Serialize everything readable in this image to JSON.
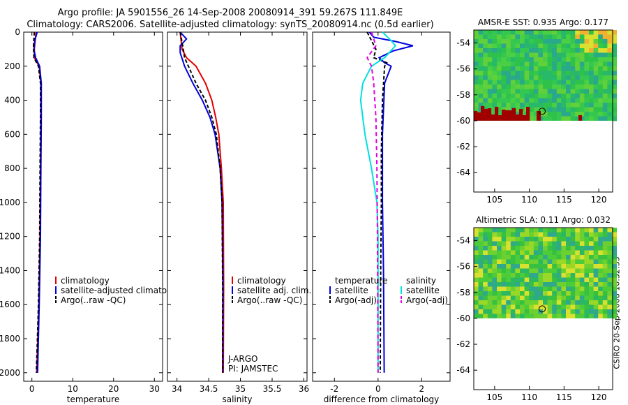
{
  "header": {
    "line1": "Argo profile: JA 5901556_26 14-Sep-2008 20080914_391 59.267S 111.849E",
    "line2": "Climatology: CARS2006. Satellite-adjusted climatology: synTS_20080914.nc (0.5d earlier)"
  },
  "timestamp": "CSIRO 20-Sep-2008 10:32:33",
  "colors": {
    "red": "#e00000",
    "blue": "#0000dd",
    "black": "#000000",
    "cyan": "#00e0e0",
    "magenta": "#e000e0",
    "land": "#a00000",
    "green": "#2ec24a",
    "yellow": "#d8e030",
    "teal": "#30b0a0"
  },
  "chart_data": [
    {
      "type": "line",
      "name": "temperature-panel",
      "xlabel": "temperature",
      "xlim": [
        -2,
        32
      ],
      "ylim": [
        2050,
        0
      ],
      "xticks": [
        0,
        10,
        20,
        30
      ],
      "yticks": [
        0,
        200,
        400,
        600,
        800,
        1000,
        1200,
        1400,
        1600,
        1800,
        2000
      ],
      "legend": [
        "climatology",
        "satellite-adjusted climatology",
        "Argo(..raw -QC)"
      ],
      "series": [
        {
          "name": "climatology",
          "color": "red",
          "dash": "",
          "points": [
            [
              1.0,
              0
            ],
            [
              0.8,
              50
            ],
            [
              0.6,
              100
            ],
            [
              0.6,
              150
            ],
            [
              1.8,
              200
            ],
            [
              2.2,
              300
            ],
            [
              2.2,
              500
            ],
            [
              2.1,
              800
            ],
            [
              2.0,
              1200
            ],
            [
              1.7,
              1600
            ],
            [
              1.2,
              2000
            ]
          ]
        },
        {
          "name": "satellite-adjusted climatology",
          "color": "blue",
          "dash": "",
          "points": [
            [
              1.3,
              0
            ],
            [
              0.7,
              50
            ],
            [
              0.5,
              100
            ],
            [
              0.9,
              150
            ],
            [
              1.9,
              200
            ],
            [
              2.3,
              300
            ],
            [
              2.3,
              500
            ],
            [
              2.2,
              800
            ],
            [
              2.1,
              1200
            ],
            [
              1.8,
              1600
            ],
            [
              1.4,
              2000
            ]
          ]
        },
        {
          "name": "Argo(..raw -QC)",
          "color": "black",
          "dash": "5,3",
          "points": [
            [
              0.6,
              0
            ],
            [
              0.4,
              80
            ],
            [
              0.5,
              150
            ],
            [
              1.6,
              200
            ],
            [
              2.1,
              300
            ],
            [
              2.1,
              500
            ],
            [
              2.0,
              800
            ],
            [
              1.9,
              1200
            ],
            [
              1.6,
              1600
            ],
            [
              1.1,
              2000
            ]
          ]
        }
      ]
    },
    {
      "type": "line",
      "name": "salinity-panel",
      "xlabel": "salinity",
      "xlim": [
        33.85,
        36.05
      ],
      "ylim": [
        2050,
        0
      ],
      "xticks": [
        34,
        34.5,
        35,
        35.5,
        36
      ],
      "yticks": [
        0,
        200,
        400,
        600,
        800,
        1000,
        1200,
        1400,
        1600,
        1800,
        2000
      ],
      "legend": [
        "climatology",
        "satellite adj. clim.",
        "Argo(..raw -QC)"
      ],
      "annotations": [
        "J-ARGO",
        "PI: JAMSTEC"
      ],
      "series": [
        {
          "name": "climatology",
          "color": "red",
          "dash": "",
          "points": [
            [
              34.05,
              0
            ],
            [
              34.08,
              100
            ],
            [
              34.15,
              150
            ],
            [
              34.3,
              200
            ],
            [
              34.45,
              300
            ],
            [
              34.55,
              400
            ],
            [
              34.61,
              500
            ],
            [
              34.66,
              600
            ],
            [
              34.7,
              800
            ],
            [
              34.73,
              1000
            ],
            [
              34.735,
              1500
            ],
            [
              34.73,
              2000
            ]
          ]
        },
        {
          "name": "satellite adj. clim.",
          "color": "blue",
          "dash": "",
          "points": [
            [
              34.05,
              0
            ],
            [
              34.15,
              40
            ],
            [
              34.05,
              80
            ],
            [
              34.05,
              120
            ],
            [
              34.12,
              200
            ],
            [
              34.25,
              300
            ],
            [
              34.4,
              400
            ],
            [
              34.52,
              500
            ],
            [
              34.6,
              600
            ],
            [
              34.68,
              800
            ],
            [
              34.71,
              1000
            ],
            [
              34.725,
              1500
            ],
            [
              34.72,
              2000
            ]
          ]
        },
        {
          "name": "Argo(..raw -QC)",
          "color": "black",
          "dash": "5,3",
          "points": [
            [
              34.05,
              0
            ],
            [
              34.1,
              100
            ],
            [
              34.12,
              150
            ],
            [
              34.18,
              200
            ],
            [
              34.3,
              300
            ],
            [
              34.45,
              400
            ],
            [
              34.55,
              500
            ],
            [
              34.62,
              600
            ],
            [
              34.68,
              800
            ],
            [
              34.71,
              1000
            ],
            [
              34.72,
              1500
            ],
            [
              34.72,
              2000
            ]
          ]
        }
      ]
    },
    {
      "type": "line",
      "name": "difference-panel",
      "xlabel": "difference from climatology",
      "xlim": [
        -3,
        3.3
      ],
      "ylim": [
        2050,
        0
      ],
      "xticks": [
        -2,
        0,
        2
      ],
      "yticks": [
        0,
        200,
        400,
        600,
        800,
        1000,
        1200,
        1400,
        1600,
        1800,
        2000
      ],
      "legend": [
        "temperature",
        "satellite",
        "Argo(-adj)",
        "salinity",
        "satellite",
        "Argo(-adj)"
      ],
      "series": [
        {
          "name": "temperature satellite",
          "color": "blue",
          "dash": "",
          "points": [
            [
              -0.4,
              0
            ],
            [
              -0.2,
              30
            ],
            [
              0.8,
              55
            ],
            [
              1.6,
              80
            ],
            [
              0.7,
              110
            ],
            [
              0.05,
              150
            ],
            [
              0.3,
              180
            ],
            [
              0.6,
              200
            ],
            [
              0.3,
              300
            ],
            [
              0.2,
              600
            ],
            [
              0.2,
              1000
            ],
            [
              0.25,
              1400
            ],
            [
              0.28,
              2000
            ]
          ]
        },
        {
          "name": "temperature Argo(-adj)",
          "color": "black",
          "dash": "5,3",
          "points": [
            [
              -0.5,
              0
            ],
            [
              -0.3,
              50
            ],
            [
              -0.1,
              100
            ],
            [
              -0.2,
              150
            ],
            [
              0.4,
              180
            ],
            [
              0.3,
              200
            ],
            [
              0.2,
              400
            ],
            [
              0.15,
              700
            ],
            [
              0.15,
              1000
            ],
            [
              0.12,
              1400
            ],
            [
              0.1,
              2000
            ]
          ]
        },
        {
          "name": "salinity satellite",
          "color": "cyan",
          "dash": "",
          "points": [
            [
              0.2,
              0
            ],
            [
              0.6,
              50
            ],
            [
              0.8,
              80
            ],
            [
              0.3,
              150
            ],
            [
              -0.3,
              200
            ],
            [
              -0.7,
              300
            ],
            [
              -0.8,
              400
            ],
            [
              -0.6,
              600
            ],
            [
              -0.3,
              800
            ],
            [
              -0.05,
              1000
            ],
            [
              0,
              1200
            ],
            [
              0,
              2000
            ]
          ]
        },
        {
          "name": "salinity Argo(-adj)",
          "color": "magenta",
          "dash": "6,4",
          "points": [
            [
              -0.3,
              0
            ],
            [
              -0.1,
              80
            ],
            [
              -0.5,
              150
            ],
            [
              -0.3,
              200
            ],
            [
              -0.2,
              300
            ],
            [
              -0.1,
              500
            ],
            [
              -0.05,
              800
            ],
            [
              -0.03,
              1200
            ],
            [
              0,
              2000
            ]
          ]
        }
      ]
    },
    {
      "type": "heatmap",
      "name": "sst-map",
      "title": "AMSR-E SST: 0.935 Argo: 0.177",
      "xlim": [
        102,
        122
      ],
      "ylim": [
        -65.5,
        -53
      ],
      "xticks": [
        105,
        110,
        115,
        120
      ],
      "yticks": [
        -54,
        -56,
        -58,
        -60,
        -62,
        -64
      ],
      "data_southern_limit": -60,
      "marker": [
        111.849,
        -59.267
      ]
    },
    {
      "type": "heatmap",
      "name": "sla-map",
      "title": "Altimetric SLA: 0.11 Argo: 0.032",
      "xlim": [
        102,
        122
      ],
      "ylim": [
        -65.5,
        -53
      ],
      "xticks": [
        105,
        110,
        115,
        120
      ],
      "yticks": [
        -54,
        -56,
        -58,
        -60,
        -62,
        -64
      ],
      "data_southern_limit": -60,
      "marker": [
        111.849,
        -59.267
      ]
    }
  ]
}
